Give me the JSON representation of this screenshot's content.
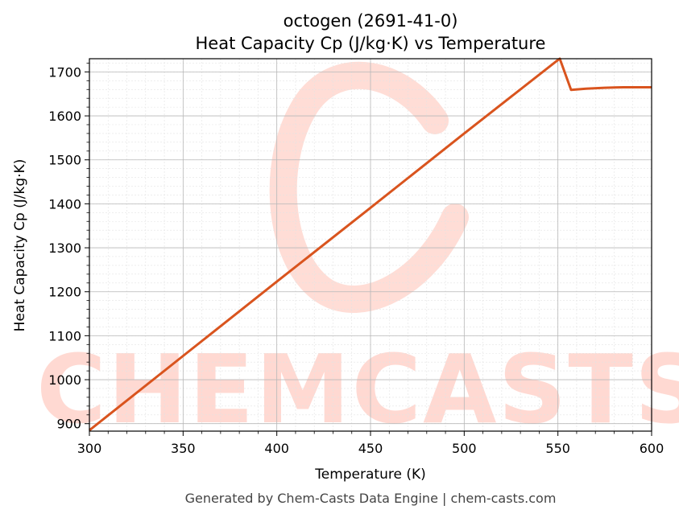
{
  "chart_data": {
    "type": "line",
    "title": "octogen (2691-41-0)",
    "subtitle": "Heat Capacity Cp (J/kg·K) vs Temperature",
    "xlabel": "Temperature (K)",
    "ylabel": "Heat Capacity Cp (J/kg·K)",
    "xlim": [
      300,
      600
    ],
    "ylim": [
      883,
      1730
    ],
    "x_ticks": [
      300,
      350,
      400,
      450,
      500,
      550,
      600
    ],
    "y_ticks": [
      900,
      1000,
      1100,
      1200,
      1300,
      1400,
      1500,
      1600,
      1700
    ],
    "grid": true,
    "line_color": "#d9541e",
    "series": [
      {
        "x": [
          300,
          350,
          400,
          450,
          500,
          550,
          551,
          557,
          565,
          575,
          585,
          600
        ],
        "y": [
          885,
          1054,
          1223,
          1391,
          1560,
          1727,
          1730,
          1659,
          1662,
          1664,
          1665,
          1665
        ]
      }
    ]
  },
  "watermark": {
    "text": "CHEMCASTS",
    "color": "#ffd9d2"
  },
  "footer": {
    "text": "Generated by Chem-Casts Data Engine | chem-casts.com"
  }
}
